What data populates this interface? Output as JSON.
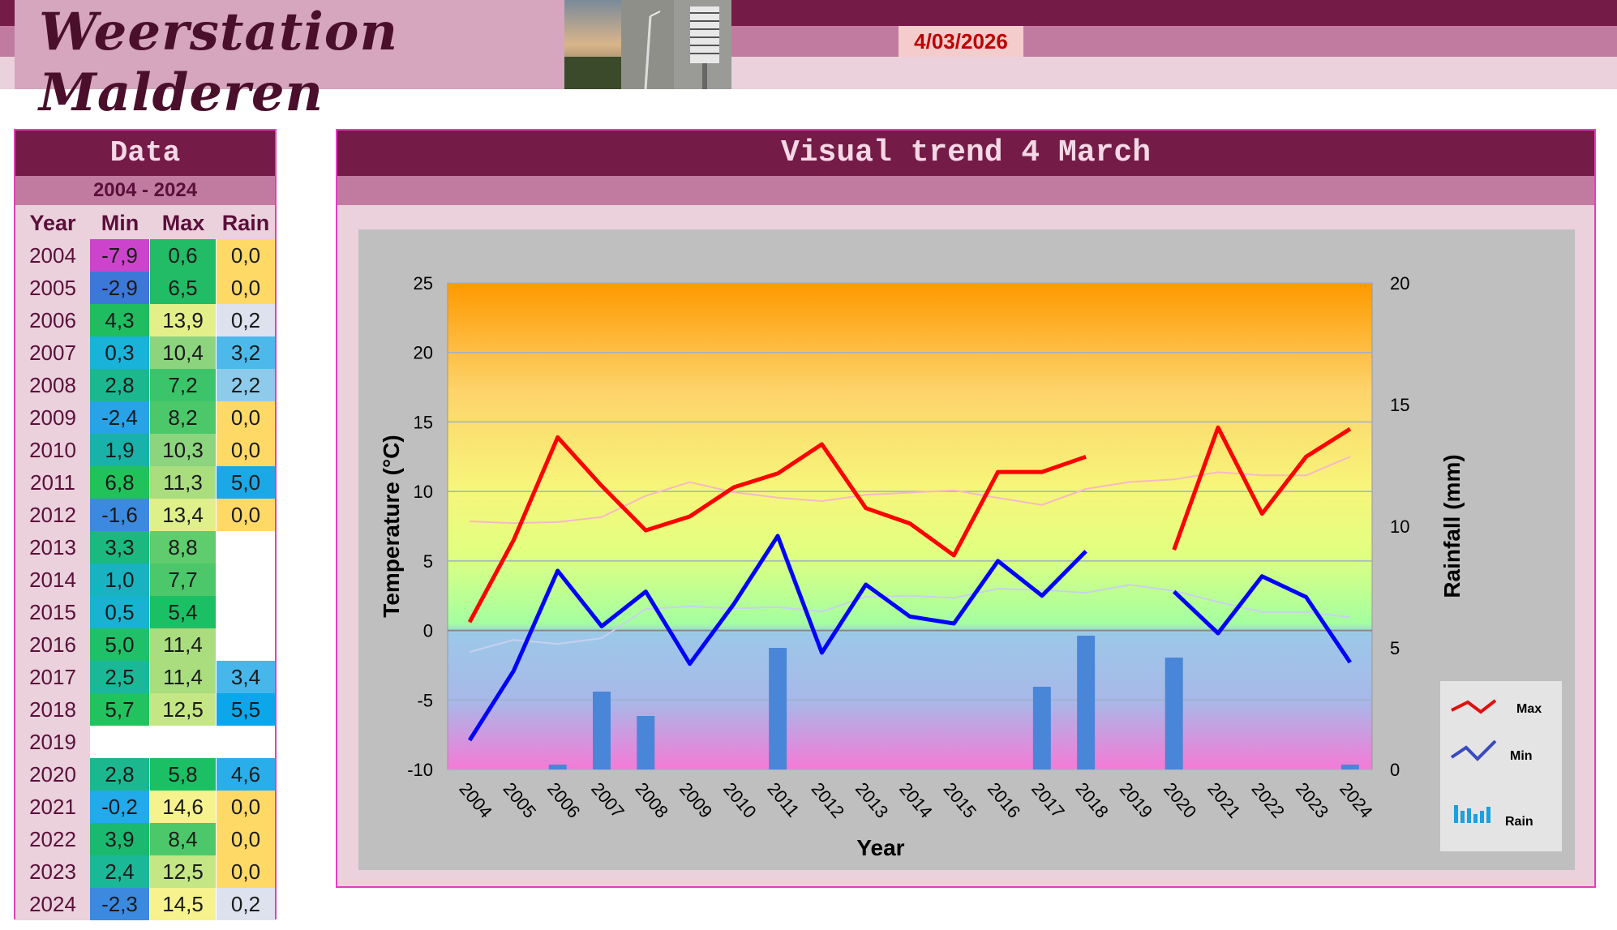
{
  "header": {
    "title": "Weerstation Malderen",
    "date": "4/03/2026"
  },
  "data_panel": {
    "title": "Data",
    "range": "2004 - 2024",
    "col_year": "Year",
    "col_min": "Min",
    "col_max": "Max",
    "col_rain": "Rain",
    "rows": [
      {
        "year": "2004",
        "min": "-7,9",
        "max": "0,6",
        "rain": "0,0",
        "min_color": "#cc44cc",
        "max_color": "#22bb66",
        "rain_color": "#ffd966"
      },
      {
        "year": "2005",
        "min": "-2,9",
        "max": "6,5",
        "rain": "0,0",
        "min_color": "#3c78d8",
        "max_color": "#22bb66",
        "rain_color": "#ffd966"
      },
      {
        "year": "2006",
        "min": "4,3",
        "max": "13,9",
        "rain": "0,2",
        "min_color": "#1fbd60",
        "max_color": "#e3f08a",
        "rain_color": "#dde2ee"
      },
      {
        "year": "2007",
        "min": "0,3",
        "max": "10,4",
        "rain": "3,2",
        "min_color": "#19b2d8",
        "max_color": "#8cd47e",
        "rain_color": "#4db9ea"
      },
      {
        "year": "2008",
        "min": "2,8",
        "max": "7,2",
        "rain": "2,2",
        "min_color": "#1bb88f",
        "max_color": "#3cc46a",
        "rain_color": "#8ecbea"
      },
      {
        "year": "2009",
        "min": "-2,4",
        "max": "8,2",
        "rain": "0,0",
        "min_color": "#28a3e8",
        "max_color": "#4cc86a",
        "rain_color": "#ffd966"
      },
      {
        "year": "2010",
        "min": "1,9",
        "max": "10,3",
        "rain": "0,0",
        "min_color": "#19b2a8",
        "max_color": "#8cd47e",
        "rain_color": "#ffd966"
      },
      {
        "year": "2011",
        "min": "6,8",
        "max": "11,3",
        "rain": "5,0",
        "min_color": "#22c25a",
        "max_color": "#a9dd7e",
        "rain_color": "#1ba8e6"
      },
      {
        "year": "2012",
        "min": "-1,6",
        "max": "13,4",
        "rain": "0,0",
        "min_color": "#3c8ae0",
        "max_color": "#dff08a",
        "rain_color": "#ffd966"
      },
      {
        "year": "2013",
        "min": "3,3",
        "max": "8,8",
        "rain": "",
        "min_color": "#1bb880",
        "max_color": "#5fcc6e",
        "rain_color": "#ffffff"
      },
      {
        "year": "2014",
        "min": "1,0",
        "max": "7,7",
        "rain": "",
        "min_color": "#19b2c0",
        "max_color": "#4cc86a",
        "rain_color": "#ffffff"
      },
      {
        "year": "2015",
        "min": "0,5",
        "max": "5,4",
        "rain": "",
        "min_color": "#19b2d0",
        "max_color": "#1cc064",
        "rain_color": "#ffffff"
      },
      {
        "year": "2016",
        "min": "5,0",
        "max": "11,4",
        "rain": "",
        "min_color": "#20c068",
        "max_color": "#a9dd7e",
        "rain_color": "#ffffff"
      },
      {
        "year": "2017",
        "min": "2,5",
        "max": "11,4",
        "rain": "3,4",
        "min_color": "#1bb898",
        "max_color": "#a9dd7e",
        "rain_color": "#47b6ea"
      },
      {
        "year": "2018",
        "min": "5,7",
        "max": "12,5",
        "rain": "5,5",
        "min_color": "#22c25e",
        "max_color": "#c4e684",
        "rain_color": "#0ca6ea"
      },
      {
        "year": "2019",
        "min": "",
        "max": "",
        "rain": "",
        "min_color": "#ffffff",
        "max_color": "#ffffff",
        "rain_color": "#ffffff"
      },
      {
        "year": "2020",
        "min": "2,8",
        "max": "5,8",
        "rain": "4,6",
        "min_color": "#1bb88f",
        "max_color": "#1cc064",
        "rain_color": "#2aaeea"
      },
      {
        "year": "2021",
        "min": "-0,2",
        "max": "14,6",
        "rain": "0,0",
        "min_color": "#22aaea",
        "max_color": "#f6f28e",
        "rain_color": "#ffd966"
      },
      {
        "year": "2022",
        "min": "3,9",
        "max": "8,4",
        "rain": "0,0",
        "min_color": "#1bb870",
        "max_color": "#4cc86a",
        "rain_color": "#ffd966"
      },
      {
        "year": "2023",
        "min": "2,4",
        "max": "12,5",
        "rain": "0,0",
        "min_color": "#1bb898",
        "max_color": "#c4e684",
        "rain_color": "#ffd966"
      },
      {
        "year": "2024",
        "min": "-2,3",
        "max": "14,5",
        "rain": "0,2",
        "min_color": "#3c8ae0",
        "max_color": "#f6f28e",
        "rain_color": "#dde2ee"
      }
    ]
  },
  "chart_panel": {
    "title": "Visual trend 4 March"
  },
  "chart_data": {
    "type": "line",
    "xlabel": "Year",
    "ylabel": "Temperature (°C)",
    "y2label": "Rainfall (mm)",
    "ylim": [
      -10,
      25
    ],
    "y2lim": [
      0,
      20
    ],
    "yticks": [
      "25",
      "20",
      "15",
      "10",
      "5",
      "0",
      "-5",
      "-10"
    ],
    "y2ticks": [
      "20",
      "15",
      "10",
      "5",
      "0"
    ],
    "categories": [
      "2004",
      "2005",
      "2006",
      "2007",
      "2008",
      "2009",
      "2010",
      "2011",
      "2012",
      "2013",
      "2014",
      "2015",
      "2016",
      "2017",
      "2018",
      "2019",
      "2020",
      "2021",
      "2022",
      "2023",
      "2024"
    ],
    "series": [
      {
        "name": "Max",
        "type": "line",
        "axis": "left",
        "color": "#ff0000",
        "values": [
          0.6,
          6.5,
          13.9,
          10.4,
          7.2,
          8.2,
          10.3,
          11.3,
          13.4,
          8.8,
          7.7,
          5.4,
          11.4,
          11.4,
          12.5,
          null,
          5.8,
          14.6,
          8.4,
          12.5,
          14.5
        ]
      },
      {
        "name": "Min",
        "type": "line",
        "axis": "left",
        "color": "#0000ff",
        "values": [
          -7.9,
          -2.9,
          4.3,
          0.3,
          2.8,
          -2.4,
          1.9,
          6.8,
          -1.6,
          3.3,
          1.0,
          0.5,
          5.0,
          2.5,
          5.7,
          null,
          2.8,
          -0.2,
          3.9,
          2.4,
          -2.3
        ]
      },
      {
        "name": "Rain",
        "type": "bar",
        "axis": "right",
        "color": "#4a86d8",
        "values": [
          0.0,
          0.0,
          0.2,
          3.2,
          2.2,
          0.0,
          0.0,
          5.0,
          0.0,
          null,
          null,
          null,
          null,
          3.4,
          5.5,
          null,
          4.6,
          0.0,
          0.0,
          0.0,
          0.2
        ]
      }
    ],
    "legend_position": "right"
  }
}
